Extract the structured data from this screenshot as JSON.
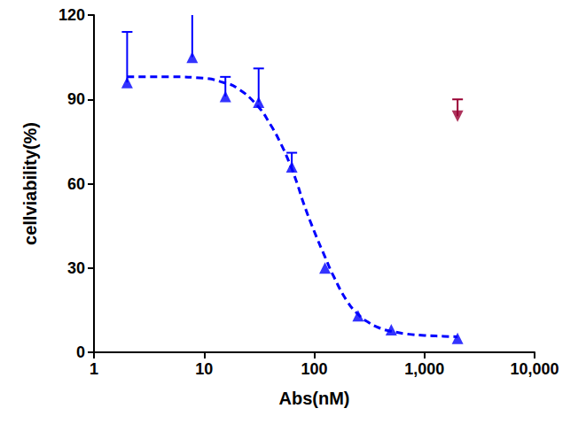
{
  "chart_data": {
    "type": "scatter",
    "x_label": "Abs(nM)",
    "y_label": "cellviability(%)",
    "log": "x",
    "grid": false,
    "xlim": [
      1,
      10000
    ],
    "xticks": [
      1,
      10,
      100,
      1000,
      10000
    ],
    "ylim": [
      0,
      120
    ],
    "yticks": [
      0,
      30,
      60,
      90,
      120
    ],
    "series": [
      {
        "type": "line",
        "color": "#0000ff",
        "line_style": "dashed",
        "x": [
          2,
          5,
          10,
          15,
          20,
          30,
          40,
          50,
          60,
          70,
          80,
          100,
          125,
          150,
          200,
          250,
          300,
          400,
          500,
          700,
          1000,
          1500,
          2000
        ],
        "values": [
          98,
          98,
          97.5,
          96,
          94,
          88,
          81,
          74,
          67,
          60,
          53,
          43,
          34,
          27,
          18,
          13.5,
          11,
          8.5,
          7.5,
          6.5,
          6,
          5.7,
          5.5
        ]
      },
      {
        "type": "scatter",
        "color": "#0000ff",
        "marker": "triangle",
        "x": [
          2,
          7.8,
          15.6,
          31.25,
          62.5,
          125,
          250,
          500,
          2000
        ],
        "values": [
          96,
          105,
          91,
          89,
          66,
          30,
          13,
          8,
          5
        ],
        "errors": [
          18,
          16,
          7,
          12,
          5,
          0,
          0,
          0,
          0
        ]
      },
      {
        "type": "scatter",
        "color": "#990033",
        "marker": "triangle-down",
        "x": [
          2000
        ],
        "values": [
          84
        ],
        "errors": [
          6
        ]
      }
    ]
  }
}
